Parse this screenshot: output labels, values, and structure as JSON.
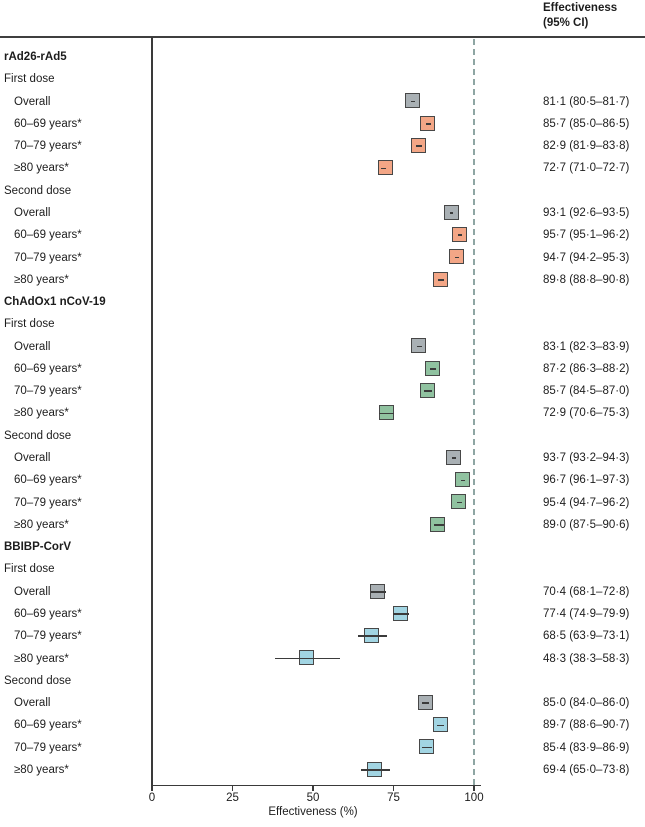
{
  "colors": {
    "top_rule": "#3f3f3f",
    "axis": "#3a3a3a",
    "ci_line": "#3b3b3b",
    "box_border": "#474747",
    "overall_fill": "#a9b0b4",
    "reference_line": "#8ea6a3",
    "text": "#1c1c1c"
  },
  "chart_data": {
    "type": "scatter",
    "variant": "forest-plot",
    "xlabel": "Effectiveness (%)",
    "xlim": [
      0,
      100
    ],
    "xticks": [
      0,
      25,
      50,
      75,
      100
    ],
    "reference_line_x": 100,
    "grid": false,
    "value_column_header": [
      "Effectiveness",
      "(95% CI)"
    ],
    "groups": [
      {
        "name": "rAd26-rAd5",
        "age_fill": "#f3a686",
        "doses": [
          {
            "name": "First dose",
            "rows": [
              {
                "label": "Overall",
                "estimate": 81.1,
                "ci_low": 80.5,
                "ci_high": 81.7,
                "display": "81·1 (80·5–81·7)",
                "is_overall": true
              },
              {
                "label": "60–69 years*",
                "estimate": 85.7,
                "ci_low": 85.0,
                "ci_high": 86.5,
                "display": "85·7 (85·0–86·5)",
                "is_overall": false
              },
              {
                "label": "70–79 years*",
                "estimate": 82.9,
                "ci_low": 81.9,
                "ci_high": 83.8,
                "display": "82·9 (81·9–83·8)",
                "is_overall": false
              },
              {
                "label": "≥80 years*",
                "estimate": 72.7,
                "ci_low": 71.0,
                "ci_high": 72.7,
                "display": "72·7 (71·0–72·7)",
                "is_overall": false
              }
            ]
          },
          {
            "name": "Second dose",
            "rows": [
              {
                "label": "Overall",
                "estimate": 93.1,
                "ci_low": 92.6,
                "ci_high": 93.5,
                "display": "93·1 (92·6–93·5)",
                "is_overall": true
              },
              {
                "label": "60–69 years*",
                "estimate": 95.7,
                "ci_low": 95.1,
                "ci_high": 96.2,
                "display": "95·7 (95·1–96·2)",
                "is_overall": false
              },
              {
                "label": "70–79 years*",
                "estimate": 94.7,
                "ci_low": 94.2,
                "ci_high": 95.3,
                "display": "94·7 (94·2–95·3)",
                "is_overall": false
              },
              {
                "label": "≥80 years*",
                "estimate": 89.8,
                "ci_low": 88.8,
                "ci_high": 90.8,
                "display": "89·8 (88·8–90·8)",
                "is_overall": false
              }
            ]
          }
        ]
      },
      {
        "name": "ChAdOx1 nCoV-19",
        "age_fill": "#90c2a0",
        "doses": [
          {
            "name": "First dose",
            "rows": [
              {
                "label": "Overall",
                "estimate": 83.1,
                "ci_low": 82.3,
                "ci_high": 83.9,
                "display": "83·1 (82·3–83·9)",
                "is_overall": true
              },
              {
                "label": "60–69 years*",
                "estimate": 87.2,
                "ci_low": 86.3,
                "ci_high": 88.2,
                "display": "87·2 (86·3–88·2)",
                "is_overall": false
              },
              {
                "label": "70–79 years*",
                "estimate": 85.7,
                "ci_low": 84.5,
                "ci_high": 87.0,
                "display": "85·7 (84·5–87·0)",
                "is_overall": false
              },
              {
                "label": "≥80 years*",
                "estimate": 72.9,
                "ci_low": 70.6,
                "ci_high": 75.3,
                "display": "72·9 (70·6–75·3)",
                "is_overall": false
              }
            ]
          },
          {
            "name": "Second dose",
            "rows": [
              {
                "label": "Overall",
                "estimate": 93.7,
                "ci_low": 93.2,
                "ci_high": 94.3,
                "display": "93·7 (93·2–94·3)",
                "is_overall": true
              },
              {
                "label": "60–69 years*",
                "estimate": 96.7,
                "ci_low": 96.1,
                "ci_high": 97.3,
                "display": "96·7 (96·1–97·3)",
                "is_overall": false
              },
              {
                "label": "70–79 years*",
                "estimate": 95.4,
                "ci_low": 94.7,
                "ci_high": 96.2,
                "display": "95·4 (94·7–96·2)",
                "is_overall": false
              },
              {
                "label": "≥80 years*",
                "estimate": 89.0,
                "ci_low": 87.5,
                "ci_high": 90.6,
                "display": "89·0 (87·5–90·6)",
                "is_overall": false
              }
            ]
          }
        ]
      },
      {
        "name": "BBIBP-CorV",
        "age_fill": "#a2d5e3",
        "doses": [
          {
            "name": "First dose",
            "rows": [
              {
                "label": "Overall",
                "estimate": 70.4,
                "ci_low": 68.1,
                "ci_high": 72.8,
                "display": "70·4 (68·1–72·8)",
                "is_overall": true
              },
              {
                "label": "60–69 years*",
                "estimate": 77.4,
                "ci_low": 74.9,
                "ci_high": 79.9,
                "display": "77·4 (74·9–79·9)",
                "is_overall": false
              },
              {
                "label": "70–79 years*",
                "estimate": 68.5,
                "ci_low": 63.9,
                "ci_high": 73.1,
                "display": "68·5 (63·9–73·1)",
                "is_overall": false
              },
              {
                "label": "≥80 years*",
                "estimate": 48.3,
                "ci_low": 38.3,
                "ci_high": 58.3,
                "display": "48·3 (38·3–58·3)",
                "is_overall": false
              }
            ]
          },
          {
            "name": "Second dose",
            "rows": [
              {
                "label": "Overall",
                "estimate": 85.0,
                "ci_low": 84.0,
                "ci_high": 86.0,
                "display": "85·0 (84·0–86·0)",
                "is_overall": true
              },
              {
                "label": "60–69 years*",
                "estimate": 89.7,
                "ci_low": 88.6,
                "ci_high": 90.7,
                "display": "89·7 (88·6–90·7)",
                "is_overall": false
              },
              {
                "label": "70–79 years*",
                "estimate": 85.4,
                "ci_low": 83.9,
                "ci_high": 86.9,
                "display": "85·4 (83·9–86·9)",
                "is_overall": false
              },
              {
                "label": "≥80 years*",
                "estimate": 69.4,
                "ci_low": 65.0,
                "ci_high": 73.8,
                "display": "69·4 (65·0–73·8)",
                "is_overall": false
              }
            ]
          }
        ]
      }
    ]
  }
}
